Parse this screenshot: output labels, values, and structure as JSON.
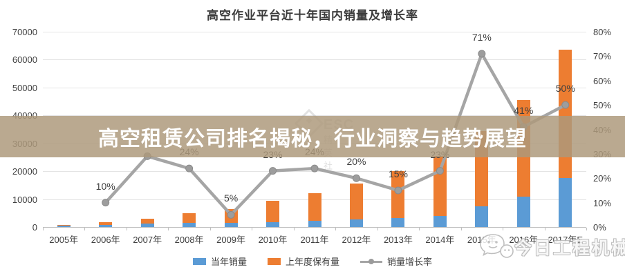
{
  "title": "高空作业平台近十年国内销量及增长率",
  "banner": {
    "text": "高空租赁公司排名揭秘，行业洞察与趋势展望"
  },
  "watermarks": {
    "center_logo": "ESC",
    "center_logo_sub": "精英社",
    "bottom_right": "今日工程机械"
  },
  "colors": {
    "sales_bar": "#5B9BD5",
    "holdings_bar": "#ED7D31",
    "growth_line": "#A5A5A5",
    "banner_bg": "#AD997B"
  },
  "chart_data": {
    "type": "bar",
    "title": "高空作业平台近十年国内销量及增长率",
    "categories": [
      "2005年",
      "2006年",
      "2007年",
      "2008年",
      "2009年",
      "2010年",
      "2011年",
      "2012年",
      "2013年",
      "2014年",
      "2015年",
      "2016年",
      "2017年E"
    ],
    "series": [
      {
        "name": "当年销量",
        "kind": "bar",
        "color": "#5B9BD5",
        "values": [
          600,
          700,
          1300,
          1400,
          1400,
          1700,
          2200,
          2700,
          3200,
          3900,
          7500,
          11000,
          17500
        ]
      },
      {
        "name": "上年度保有量",
        "kind": "bar",
        "color": "#ED7D31",
        "values": [
          100,
          1000,
          1700,
          3500,
          5000,
          7600,
          9800,
          12800,
          16800,
          21600,
          27000,
          34500,
          46000
        ]
      },
      {
        "name": "销量增长率",
        "kind": "line",
        "color": "#A5A5A5",
        "axis": "right",
        "values": [
          null,
          10,
          29,
          24,
          5,
          23,
          24,
          20,
          15,
          23,
          71,
          41,
          50
        ],
        "labels": [
          "",
          "10%",
          "",
          "24%",
          "5%",
          "23%",
          "24%",
          "20%",
          "15%",
          "23%",
          "71%",
          "41%",
          "50%"
        ]
      }
    ],
    "left_axis": {
      "min": 0,
      "max": 70000,
      "step": 10000,
      "ticks": [
        "0",
        "10000",
        "20000",
        "30000",
        "40000",
        "50000",
        "60000",
        "70000"
      ]
    },
    "right_axis": {
      "min": 0,
      "max": 80,
      "step": 10,
      "ticks": [
        "0%",
        "10%",
        "20%",
        "30%",
        "40%",
        "50%",
        "60%",
        "70%",
        "80%"
      ]
    },
    "legend_position": "bottom",
    "grid": true,
    "bars_stacked": true
  }
}
